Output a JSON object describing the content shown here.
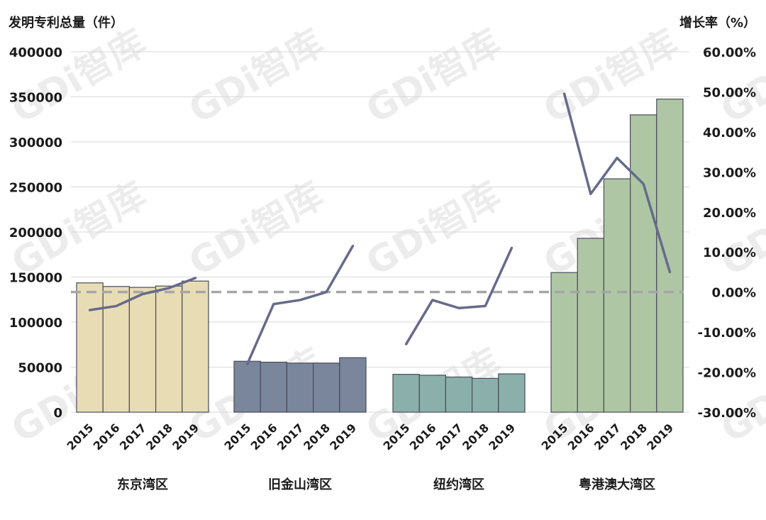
{
  "watermark": "GDi智库",
  "chart_data": {
    "type": "bar",
    "y_left_label": "发明专利总量（件）",
    "y_right_label": "增长率（%）",
    "y_left_ticks": [
      "400000",
      "350000",
      "300000",
      "250000",
      "200000",
      "150000",
      "100000",
      "50000",
      "0"
    ],
    "y_right_ticks": [
      "60.00%",
      "50.00%",
      "40.00%",
      "30.00%",
      "20.00%",
      "10.00%",
      "0.00%",
      "-10.00%",
      "-20.00%",
      "-30.00%"
    ],
    "ylim_left": [
      0,
      400000
    ],
    "ylim_right": [
      -30,
      60
    ],
    "years": [
      "2015",
      "2016",
      "2017",
      "2018",
      "2019"
    ],
    "reference_line": {
      "value": 0,
      "style": "dashed",
      "color": "#a6a6a6"
    },
    "grid": true,
    "groups": [
      {
        "name": "东京湾区",
        "bar_color": "#e8dcb5",
        "patents": [
          143500,
          139500,
          138500,
          140000,
          145500
        ],
        "growth": [
          -4.5,
          -3.5,
          -0.5,
          1.0,
          3.5
        ]
      },
      {
        "name": "旧金山湾区",
        "bar_color": "#7a869c",
        "patents": [
          56500,
          55500,
          54500,
          54500,
          60500
        ],
        "growth": [
          -18.0,
          -3.0,
          -2.0,
          0.0,
          11.5
        ]
      },
      {
        "name": "纽约湾区",
        "bar_color": "#8bb0ab",
        "patents": [
          42000,
          41000,
          39000,
          37500,
          42500
        ],
        "growth": [
          -13.0,
          -2.0,
          -4.0,
          -3.5,
          11.0
        ]
      },
      {
        "name": "粤港澳大湾区",
        "bar_color": "#aec6a4",
        "patents": [
          155000,
          193000,
          259000,
          330000,
          347500
        ],
        "growth": [
          49.5,
          24.5,
          33.5,
          27.0,
          5.0
        ]
      }
    ],
    "line_color": "#666b8a"
  }
}
